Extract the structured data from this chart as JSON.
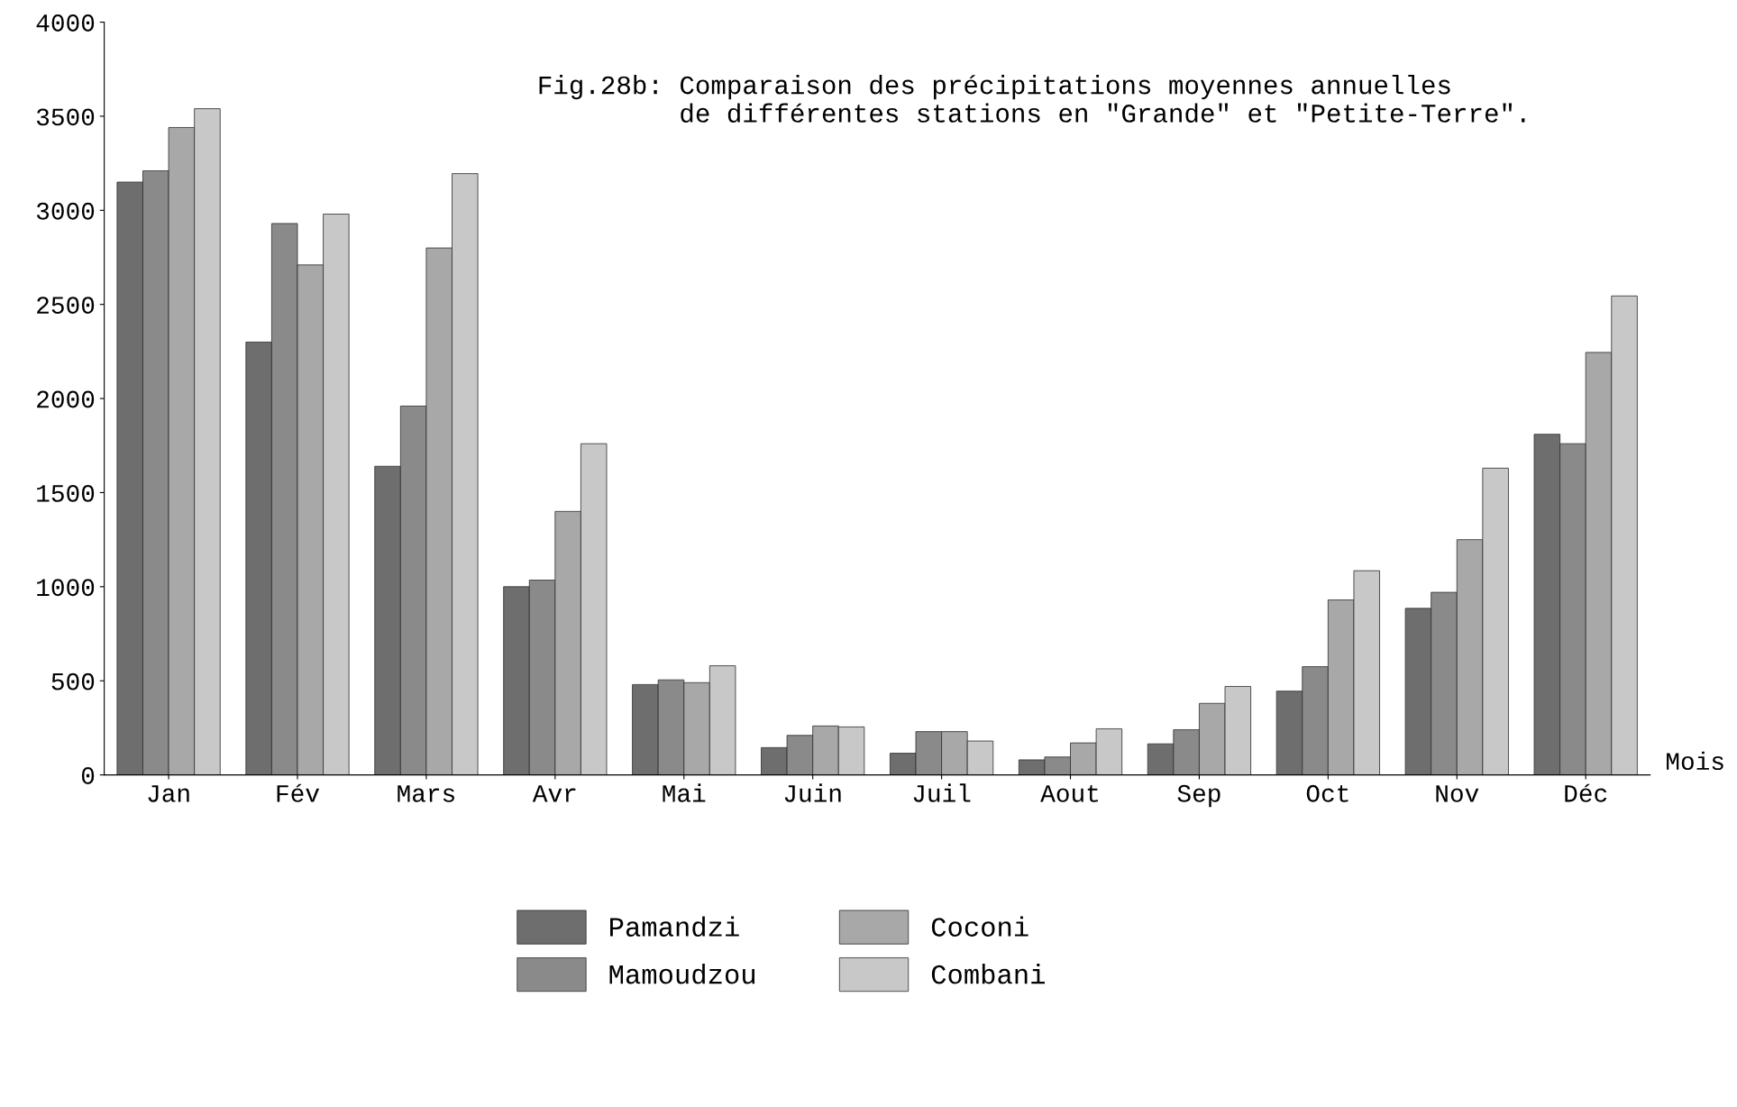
{
  "chart_data": {
    "type": "bar",
    "title": "Fig.28b: Comparaison des précipitations moyennes annuelles\n         de différentes stations en \"Grande\" et \"Petite-Terre\".",
    "xlabel": "Mois",
    "categories": [
      "Jan",
      "Fév",
      "Mars",
      "Avr",
      "Mai",
      "Juin",
      "Juil",
      "Aout",
      "Sep",
      "Oct",
      "Nov",
      "Déc"
    ],
    "series": [
      {
        "name": "Pamandzi",
        "color": "#6e6e6e",
        "values": [
          3150,
          2300,
          1640,
          1000,
          480,
          145,
          115,
          80,
          165,
          445,
          885,
          1810
        ]
      },
      {
        "name": "Mamoudzou",
        "color": "#8a8a8a",
        "values": [
          3210,
          2930,
          1960,
          1035,
          505,
          210,
          230,
          95,
          240,
          575,
          970,
          1760
        ]
      },
      {
        "name": "Coconi",
        "color": "#a8a8a8",
        "values": [
          3440,
          2710,
          2800,
          1400,
          490,
          260,
          230,
          170,
          380,
          930,
          1250,
          2245
        ]
      },
      {
        "name": "Combani",
        "color": "#c8c8c8",
        "values": [
          3540,
          2980,
          3195,
          1760,
          580,
          255,
          180,
          245,
          470,
          1085,
          1630,
          2545
        ]
      }
    ],
    "ylim": [
      0,
      4000
    ],
    "yticks": [
      0,
      500,
      1000,
      1500,
      2000,
      2500,
      3000,
      3500,
      4000
    ],
    "grid": false,
    "legend": "bottom"
  }
}
